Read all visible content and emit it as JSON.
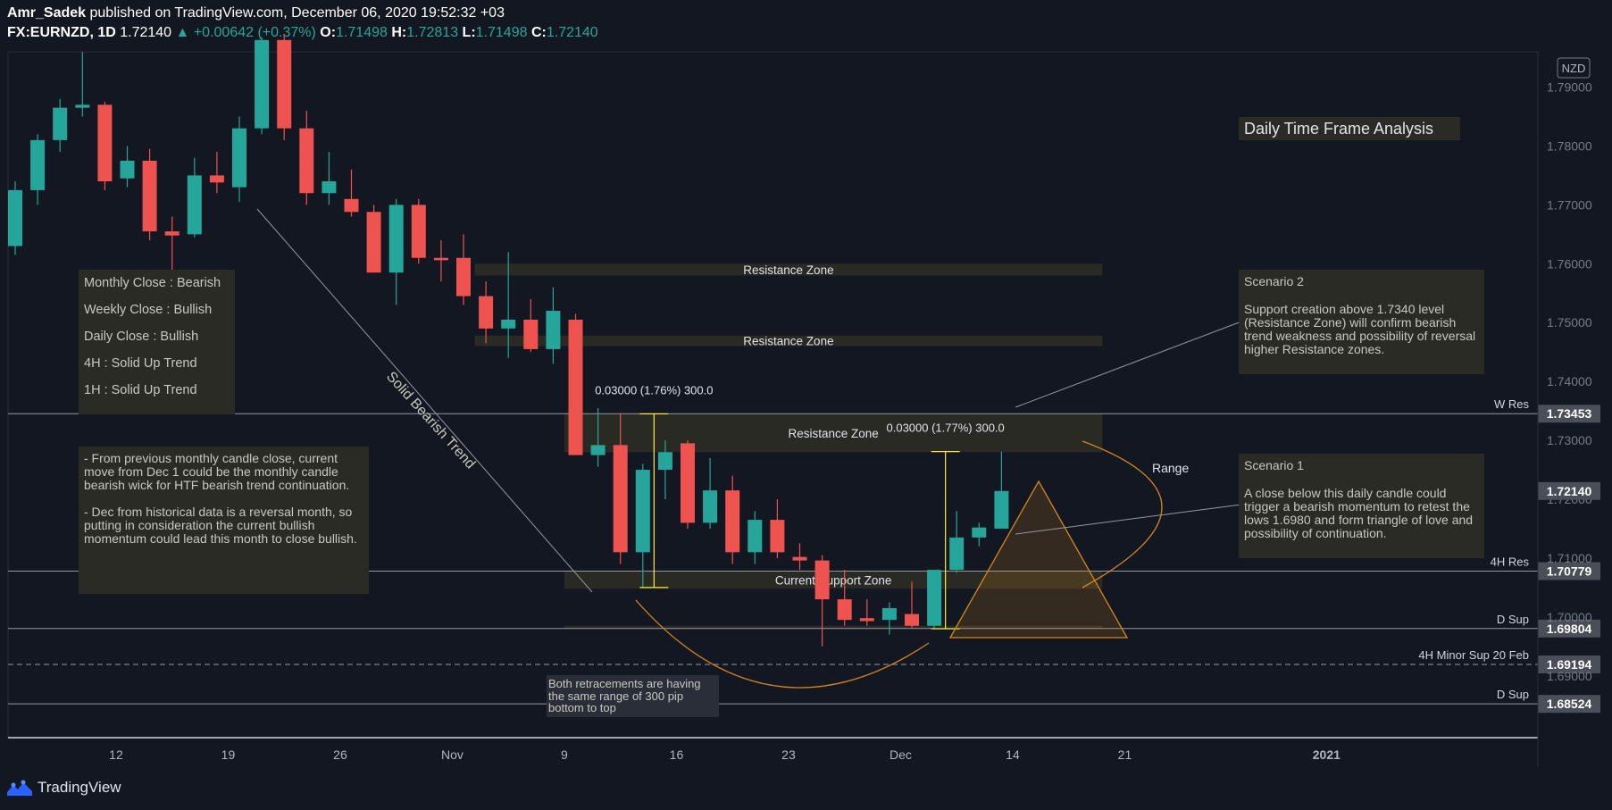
{
  "header": {
    "author": "Amr_Sadek",
    "published": "published on TradingView.com, December 06, 2020 19:52:32 +03",
    "symbol": "FX:EURNZD, 1D",
    "last": "1.72140",
    "change": "+0.00642 (+0.37%)",
    "open_label": "O:",
    "open": "1.71498",
    "high_label": "H:",
    "high": "1.72813",
    "low_label": "L:",
    "low": "1.71498",
    "close_label": "C:",
    "close": "1.72140"
  },
  "footer": {
    "brand": "TradingView",
    "logo_icon": "tradingview-logo-icon"
  },
  "colors": {
    "bull": "#26a69a",
    "bear": "#ef5350",
    "background": "#131722",
    "zone": "#2a2b24",
    "annotation": "#d4861c"
  },
  "chart_data": {
    "type": "candlestick",
    "currency": "NZD",
    "ylim": [
      1.6795,
      1.796
    ],
    "y_ticks": [
      "1.79000",
      "1.78000",
      "1.77000",
      "1.76000",
      "1.75000",
      "1.74000",
      "1.73000",
      "1.72000",
      "1.71000",
      "1.70000",
      "1.69000"
    ],
    "x_ticks": [
      {
        "i": 4.5,
        "label": "12"
      },
      {
        "i": 9.5,
        "label": "19"
      },
      {
        "i": 14.5,
        "label": "26"
      },
      {
        "i": 19.5,
        "label": "Nov"
      },
      {
        "i": 24.5,
        "label": "9"
      },
      {
        "i": 29.5,
        "label": "16"
      },
      {
        "i": 34.5,
        "label": "23"
      },
      {
        "i": 39.5,
        "label": "Dec"
      },
      {
        "i": 44.5,
        "label": "14"
      },
      {
        "i": 49.5,
        "label": "21"
      },
      {
        "i": 58.5,
        "label": "2021"
      }
    ],
    "candles": [
      {
        "o": 1.763,
        "h": 1.774,
        "l": 1.7615,
        "c": 1.7725
      },
      {
        "o": 1.7725,
        "h": 1.782,
        "l": 1.77,
        "c": 1.781
      },
      {
        "o": 1.781,
        "h": 1.788,
        "l": 1.779,
        "c": 1.7865
      },
      {
        "o": 1.7865,
        "h": 1.796,
        "l": 1.785,
        "c": 1.787
      },
      {
        "o": 1.787,
        "h": 1.7875,
        "l": 1.7725,
        "c": 1.774
      },
      {
        "o": 1.7745,
        "h": 1.78,
        "l": 1.773,
        "c": 1.7775
      },
      {
        "o": 1.7775,
        "h": 1.7795,
        "l": 1.764,
        "c": 1.7655
      },
      {
        "o": 1.7655,
        "h": 1.768,
        "l": 1.759,
        "c": 1.7648
      },
      {
        "o": 1.765,
        "h": 1.778,
        "l": 1.7645,
        "c": 1.775
      },
      {
        "o": 1.775,
        "h": 1.779,
        "l": 1.772,
        "c": 1.7738
      },
      {
        "o": 1.773,
        "h": 1.785,
        "l": 1.7705,
        "c": 1.783
      },
      {
        "o": 1.783,
        "h": 1.7985,
        "l": 1.782,
        "c": 1.798
      },
      {
        "o": 1.798,
        "h": 1.799,
        "l": 1.781,
        "c": 1.783
      },
      {
        "o": 1.783,
        "h": 1.786,
        "l": 1.77,
        "c": 1.772
      },
      {
        "o": 1.772,
        "h": 1.779,
        "l": 1.77,
        "c": 1.774
      },
      {
        "o": 1.771,
        "h": 1.776,
        "l": 1.768,
        "c": 1.7688
      },
      {
        "o": 1.7688,
        "h": 1.77,
        "l": 1.759,
        "c": 1.7585
      },
      {
        "o": 1.7585,
        "h": 1.771,
        "l": 1.753,
        "c": 1.77
      },
      {
        "o": 1.77,
        "h": 1.771,
        "l": 1.76,
        "c": 1.761
      },
      {
        "o": 1.761,
        "h": 1.764,
        "l": 1.757,
        "c": 1.7606
      },
      {
        "o": 1.761,
        "h": 1.765,
        "l": 1.753,
        "c": 1.7545
      },
      {
        "o": 1.7545,
        "h": 1.757,
        "l": 1.7465,
        "c": 1.749
      },
      {
        "o": 1.749,
        "h": 1.762,
        "l": 1.744,
        "c": 1.7505
      },
      {
        "o": 1.7505,
        "h": 1.754,
        "l": 1.745,
        "c": 1.7455
      },
      {
        "o": 1.7455,
        "h": 1.756,
        "l": 1.743,
        "c": 1.752
      },
      {
        "o": 1.7505,
        "h": 1.7515,
        "l": 1.7275,
        "c": 1.7275
      },
      {
        "o": 1.7275,
        "h": 1.7355,
        "l": 1.7255,
        "c": 1.7292
      },
      {
        "o": 1.7292,
        "h": 1.7345,
        "l": 1.709,
        "c": 1.711
      },
      {
        "o": 1.711,
        "h": 1.726,
        "l": 1.705,
        "c": 1.725
      },
      {
        "o": 1.725,
        "h": 1.73,
        "l": 1.72,
        "c": 1.728
      },
      {
        "o": 1.7295,
        "h": 1.73,
        "l": 1.715,
        "c": 1.716
      },
      {
        "o": 1.716,
        "h": 1.727,
        "l": 1.715,
        "c": 1.7215
      },
      {
        "o": 1.7215,
        "h": 1.724,
        "l": 1.709,
        "c": 1.711
      },
      {
        "o": 1.711,
        "h": 1.718,
        "l": 1.709,
        "c": 1.7165
      },
      {
        "o": 1.7165,
        "h": 1.72,
        "l": 1.71,
        "c": 1.711
      },
      {
        "o": 1.7102,
        "h": 1.7125,
        "l": 1.708,
        "c": 1.7096
      },
      {
        "o": 1.7096,
        "h": 1.7105,
        "l": 1.695,
        "c": 1.703
      },
      {
        "o": 1.703,
        "h": 1.708,
        "l": 1.6985,
        "c": 1.6995
      },
      {
        "o": 1.6998,
        "h": 1.703,
        "l": 1.6985,
        "c": 1.6993
      },
      {
        "o": 1.6995,
        "h": 1.7025,
        "l": 1.697,
        "c": 1.7015
      },
      {
        "o": 1.7005,
        "h": 1.706,
        "l": 1.698,
        "c": 1.6985
      },
      {
        "o": 1.6985,
        "h": 1.7075,
        "l": 1.698,
        "c": 1.708
      },
      {
        "o": 1.708,
        "h": 1.718,
        "l": 1.7075,
        "c": 1.7135
      },
      {
        "o": 1.7135,
        "h": 1.716,
        "l": 1.712,
        "c": 1.7152
      },
      {
        "o": 1.715,
        "h": 1.7281,
        "l": 1.715,
        "c": 1.7214
      }
    ],
    "price_levels": [
      {
        "price": 1.73453,
        "name": "W Res",
        "label": "1.73453",
        "dashed": false
      },
      {
        "price": 1.70779,
        "name": "4H Res",
        "label": "1.70779",
        "dashed": false
      },
      {
        "price": 1.69804,
        "name": "D Sup",
        "label": "1.69804",
        "dashed": false
      },
      {
        "price": 1.69194,
        "name": "4H Minor Sup 20 Feb",
        "label": "1.69194",
        "dashed": true
      },
      {
        "price": 1.68524,
        "name": "D Sup",
        "label": "1.68524",
        "dashed": false
      }
    ],
    "last_price": {
      "price": 1.7214,
      "label": "1.72140"
    },
    "zones": [
      {
        "from": 20.5,
        "to": 48.5,
        "top": 1.76,
        "bottom": 1.758,
        "label": "Resistance Zone"
      },
      {
        "from": 20.5,
        "to": 48.5,
        "top": 1.7478,
        "bottom": 1.746,
        "label": "Resistance Zone"
      },
      {
        "from": 24.5,
        "to": 48.5,
        "top": 1.7345,
        "bottom": 1.728,
        "label": "Resistance Zone"
      },
      {
        "from": 24.5,
        "to": 48.5,
        "top": 1.7078,
        "bottom": 1.7048,
        "label": "Current Support Zone"
      },
      {
        "from": 24.5,
        "to": 48.5,
        "top": 1.6985,
        "bottom": 1.698,
        "label": ""
      }
    ],
    "measures": [
      {
        "i": 28.5,
        "from": 1.705,
        "to": 1.7345,
        "text": "0.03000 (1.76%) 300.0"
      },
      {
        "i": 41.5,
        "from": 1.698,
        "to": 1.7281,
        "text": "0.03000 (1.77%) 300.0"
      }
    ]
  },
  "annotations": {
    "title": "Daily Time Frame Analysis",
    "trend_label": "Solid Bearish Trend",
    "range_label": "Range",
    "closes": [
      "Monthly Close :  Bearish",
      "Weekly Close : Bullish",
      "Daily Close : Bullish",
      "4H : Solid Up Trend",
      "1H : Solid Up Trend"
    ],
    "monthly_note": [
      "- From previous monthly candle close, current move from Dec 1 could be the monthly candle bearish wick for HTF bearish trend continuation.",
      "- Dec from historical data is a reversal month, so putting in consideration the current bullish momentum could lead this month to close bullish."
    ],
    "scenario2_title": "Scenario 2",
    "scenario2_text": "Support creation above 1.7340 level (Resistance Zone) will confirm bearish trend weakness and possibility of reversal higher Resistance zones.",
    "scenario1_title": "Scenario 1",
    "scenario1_text": "A close below this daily candle could trigger a bearish momentum to retest the lows 1.6980 and form triangle of love and possibility of continuation.",
    "retracement_note": "Both retracements are having the same range of 300 pip bottom to top"
  }
}
